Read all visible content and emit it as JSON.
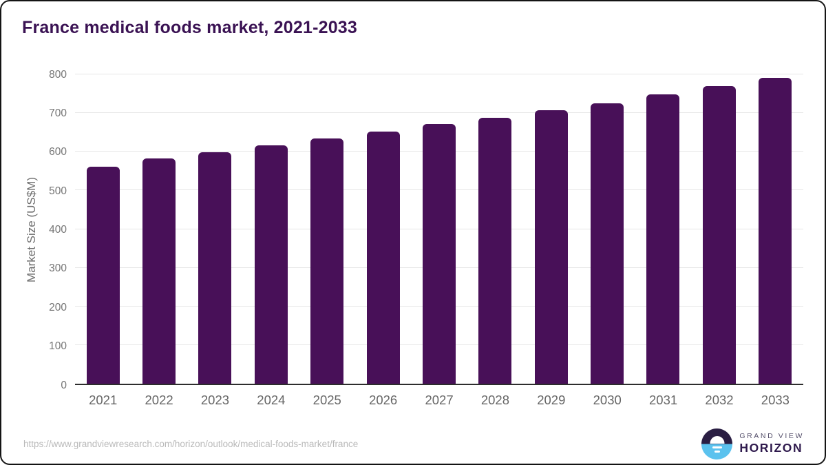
{
  "title": "France medical foods market, 2021-2033",
  "colors": {
    "bar": "#481058",
    "title": "#3a1253",
    "axis_text": "#757575",
    "x_label": "#666666",
    "gridline": "#e7e7e7",
    "axis_line": "#2d2d2d",
    "url_text": "#b9b9b9",
    "logo_circle_top": "#2a1e43",
    "logo_circle_bottom": "#5bc2ee",
    "logo_text_top": "#55506b",
    "logo_text_bottom": "#2f1a4d"
  },
  "chart_data": {
    "type": "bar",
    "title": "France medical foods market, 2021-2033",
    "categories": [
      "2021",
      "2022",
      "2023",
      "2024",
      "2025",
      "2026",
      "2027",
      "2028",
      "2029",
      "2030",
      "2031",
      "2032",
      "2033"
    ],
    "values": [
      562,
      582,
      599,
      617,
      634,
      653,
      671,
      688,
      708,
      726,
      748,
      769,
      791
    ],
    "xlabel": "",
    "ylabel": "Market Size (US$M)",
    "ylim": [
      0,
      800
    ],
    "ytick_step": 100,
    "grid": true,
    "legend": false,
    "bar_color": "#481058"
  },
  "footer": {
    "source_url": "https://www.grandviewresearch.com/horizon/outlook/medical-foods-market/france",
    "logo": {
      "brand_top": "GRAND VIEW",
      "brand_bottom": "HORIZON"
    }
  }
}
